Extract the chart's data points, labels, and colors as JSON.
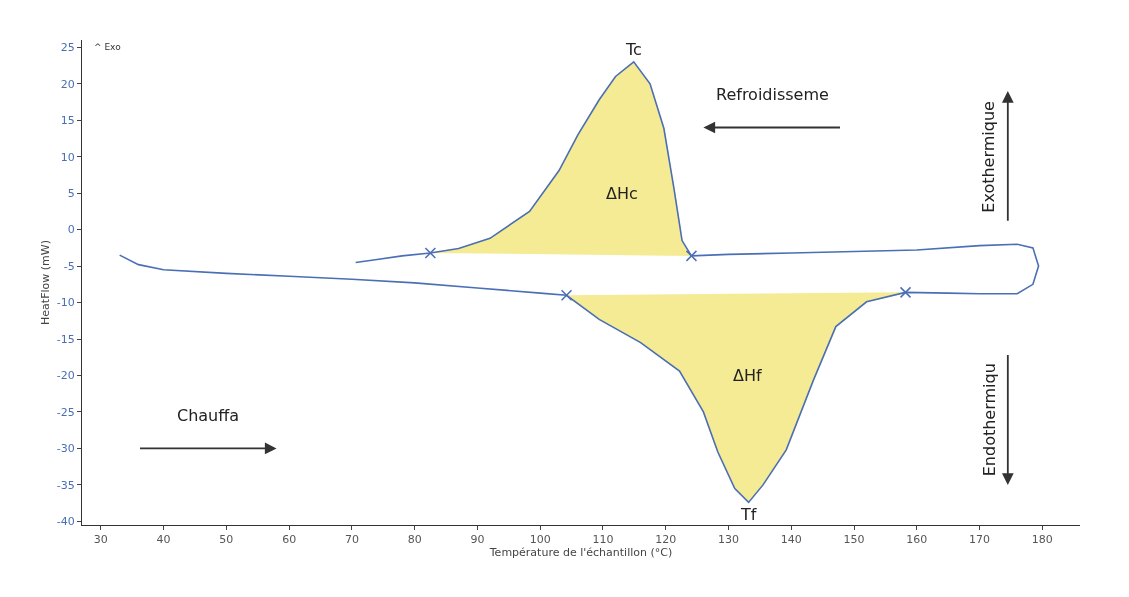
{
  "chart_data": {
    "type": "line",
    "xlabel": "Température de l'échantillon (°C)",
    "ylabel": "HeatFlow (mW)",
    "xlim": [
      27,
      186
    ],
    "xticks": [
      30,
      40,
      50,
      60,
      70,
      80,
      90,
      100,
      110,
      120,
      130,
      140,
      150,
      160,
      170,
      180
    ],
    "ylim": [
      -40.5,
      26
    ],
    "yticks": [
      -40,
      -35,
      -30,
      -25,
      -20,
      -15,
      -10,
      -5,
      0,
      5,
      10,
      15,
      20,
      25
    ],
    "marker": "none",
    "line_style": "solid",
    "series": [
      {
        "type": "area",
        "color": "#f5eb94",
        "x": [
          104.2,
          109.4,
          116,
          122.2,
          126,
          128.3,
          131,
          133.2,
          135.5,
          139.2,
          143.5,
          147.1,
          152,
          158.2
        ],
        "values": [
          -9.0,
          -12.3,
          -15.5,
          -19.4,
          -25,
          -30.5,
          -35.5,
          -37.4,
          -35,
          -30.2,
          -20.7,
          -13.3,
          -9.9,
          -8.6
        ]
      },
      {
        "type": "area",
        "color": "#f5eb94",
        "x": [
          124.1,
          122.6,
          121.3,
          119.7,
          117.5,
          114.9,
          112,
          109.4,
          106,
          103,
          98.3,
          92,
          87,
          82.5
        ],
        "values": [
          -3.6,
          -1.5,
          5.7,
          13.9,
          20,
          23,
          21,
          17.8,
          13,
          8.1,
          2.5,
          -1.2,
          -2.6,
          -3.2
        ]
      },
      {
        "color": "#4a6fb5",
        "x": [
          33,
          36,
          40,
          50,
          60,
          70,
          80,
          90,
          100,
          104.2,
          109.4,
          116,
          122.2,
          126,
          128.3,
          131,
          133.2,
          135.5,
          139.2,
          143.5,
          147.1,
          152,
          158.2,
          165,
          170,
          176,
          178.5,
          179.4,
          178.5,
          176,
          170,
          160,
          150,
          140,
          130,
          124.1,
          122.6,
          121.3,
          119.7,
          117.5,
          114.9,
          112,
          109.4,
          106,
          103,
          98.3,
          92,
          87,
          82.5,
          78,
          74,
          70.6
        ],
        "values": [
          -3.5,
          -4.8,
          -5.5,
          -6.0,
          -6.4,
          -6.8,
          -7.3,
          -8.0,
          -8.7,
          -9.0,
          -12.3,
          -15.5,
          -19.4,
          -25,
          -30.5,
          -35.5,
          -37.4,
          -35,
          -30.2,
          -20.7,
          -13.3,
          -9.9,
          -8.6,
          -8.7,
          -8.8,
          -8.8,
          -7.5,
          -5,
          -2.5,
          -2.0,
          -2.2,
          -2.8,
          -3.0,
          -3.2,
          -3.4,
          -3.6,
          -1.5,
          5.7,
          13.9,
          20,
          23,
          21,
          17.8,
          13,
          8.1,
          2.5,
          -1.2,
          -2.6,
          -3.2,
          -3.6,
          -4.1,
          -4.5
        ]
      },
      {
        "type": "scatter",
        "marker": "cross",
        "color": "#4a6fb5",
        "x": [
          82.5,
          104.2,
          124.1,
          158.2
        ],
        "values": [
          -3.2,
          -9.0,
          -3.6,
          -8.6
        ]
      }
    ],
    "annotations": [
      "^ Exo",
      {
        "text": "Tc",
        "x": 114.9,
        "y": 23
      },
      "ΔHc",
      "ΔHf",
      {
        "text": "Tf",
        "x": 133.2,
        "y": -37.4
      },
      "Refroidisseme",
      "Chauffa",
      "Exothermique",
      "Endothermiqu"
    ]
  }
}
